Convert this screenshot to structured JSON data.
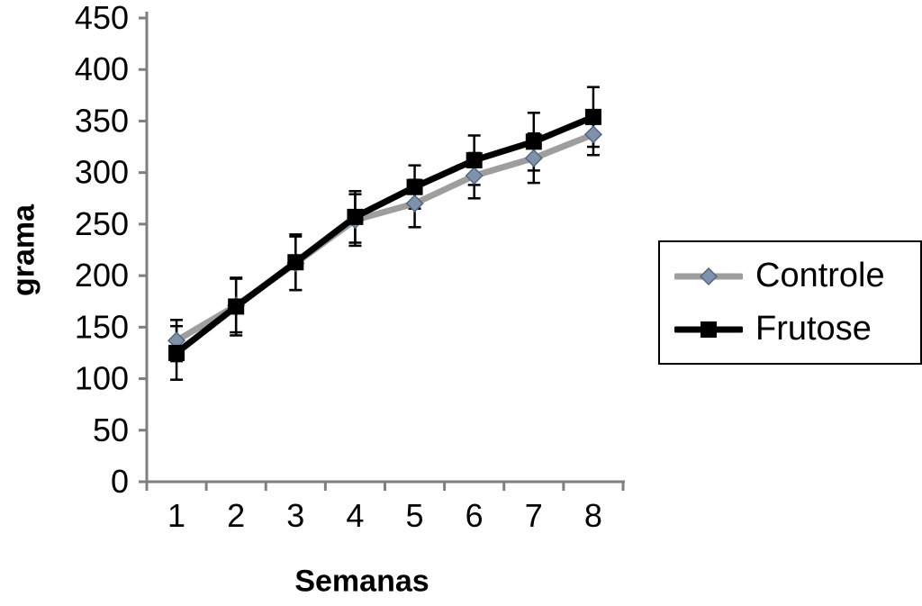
{
  "chart_data": {
    "type": "line",
    "title": "",
    "xlabel": "Semanas",
    "ylabel": "grama",
    "categories": [
      "1",
      "2",
      "3",
      "4",
      "5",
      "6",
      "7",
      "8"
    ],
    "ylim": [
      0,
      450
    ],
    "ytick_step": 50,
    "grid": false,
    "legend_position": "right",
    "axis_color": "#7f7f7f",
    "error_bar_color": "#000000",
    "series": [
      {
        "name": "Controle",
        "color": "#9e9e9e",
        "marker": "diamond",
        "marker_color": "#7e92ab",
        "marker_edge": "#55677d",
        "values": [
          137,
          171,
          212,
          254,
          270,
          297,
          314,
          337
        ],
        "errors": [
          20,
          26,
          26,
          25,
          23,
          22,
          24,
          20
        ]
      },
      {
        "name": "Frutose",
        "color": "#000000",
        "marker": "square",
        "marker_color": "#000000",
        "marker_edge": "#000000",
        "values": [
          125,
          170,
          213,
          257,
          286,
          312,
          330,
          354
        ],
        "errors": [
          26,
          28,
          27,
          25,
          21,
          24,
          28,
          29
        ]
      }
    ]
  }
}
